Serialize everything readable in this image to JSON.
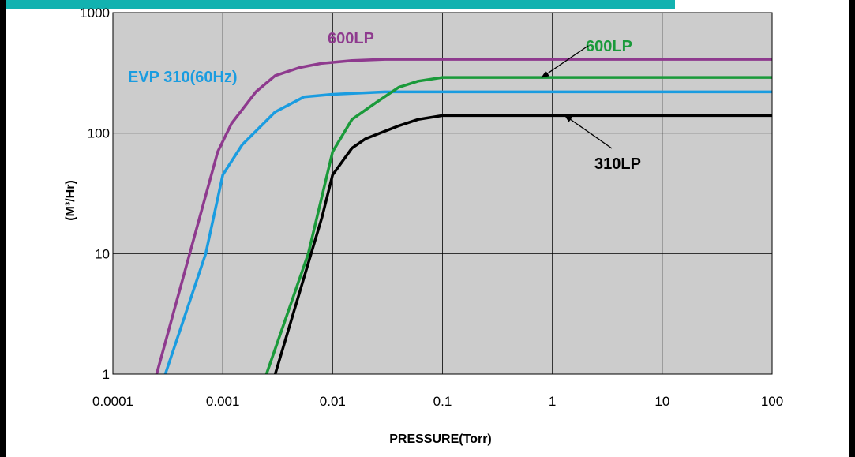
{
  "chart_data": {
    "type": "line",
    "xlabel": "PRESSURE(Torr)",
    "ylabel": "(M³/Hr)",
    "xscale": "log",
    "yscale": "log",
    "xlim": [
      0.0001,
      100
    ],
    "ylim": [
      1,
      1000
    ],
    "x_tick_labels": [
      "0.0001",
      "0.001",
      "0.01",
      "0.1",
      "1",
      "10",
      "100"
    ],
    "y_tick_labels": [
      "1",
      "10",
      "100",
      "1000"
    ],
    "grid": true,
    "background_color": "#cccccc",
    "series": [
      {
        "name": "600LP",
        "color": "#8e3a8e",
        "points": [
          [
            0.00025,
            1
          ],
          [
            0.0005,
            10
          ],
          [
            0.0009,
            70
          ],
          [
            0.0012,
            120
          ],
          [
            0.002,
            220
          ],
          [
            0.003,
            300
          ],
          [
            0.005,
            350
          ],
          [
            0.008,
            380
          ],
          [
            0.015,
            400
          ],
          [
            0.03,
            410
          ],
          [
            100,
            410
          ]
        ]
      },
      {
        "name": "EVP 310(60Hz)",
        "color": "#1a9ce0",
        "points": [
          [
            0.0003,
            1
          ],
          [
            0.0007,
            10
          ],
          [
            0.001,
            45
          ],
          [
            0.0015,
            80
          ],
          [
            0.003,
            150
          ],
          [
            0.0055,
            200
          ],
          [
            0.01,
            210
          ],
          [
            0.03,
            220
          ],
          [
            100,
            220
          ]
        ]
      },
      {
        "name": "600LP",
        "color": "#1a9a3a",
        "points": [
          [
            0.0025,
            1
          ],
          [
            0.006,
            10
          ],
          [
            0.01,
            70
          ],
          [
            0.015,
            130
          ],
          [
            0.025,
            180
          ],
          [
            0.04,
            240
          ],
          [
            0.06,
            270
          ],
          [
            0.1,
            290
          ],
          [
            100,
            290
          ]
        ]
      },
      {
        "name": "310LP",
        "color": "#000000",
        "points": [
          [
            0.003,
            1
          ],
          [
            0.008,
            20
          ],
          [
            0.01,
            45
          ],
          [
            0.015,
            75
          ],
          [
            0.02,
            90
          ],
          [
            0.04,
            115
          ],
          [
            0.06,
            130
          ],
          [
            0.1,
            140
          ],
          [
            100,
            140
          ]
        ]
      }
    ],
    "annotations": [
      {
        "text": "600LP",
        "color": "#8e3a8e",
        "arrow": false
      },
      {
        "text": "EVP 310(60Hz)",
        "color": "#1a9ce0",
        "arrow": false
      },
      {
        "text": "600LP",
        "color": "#1a9a3a",
        "arrow": true,
        "arrow_target": [
          0.8,
          290
        ]
      },
      {
        "text": "310LP",
        "color": "#000000",
        "arrow": true,
        "arrow_target": [
          1.3,
          140
        ]
      }
    ]
  }
}
